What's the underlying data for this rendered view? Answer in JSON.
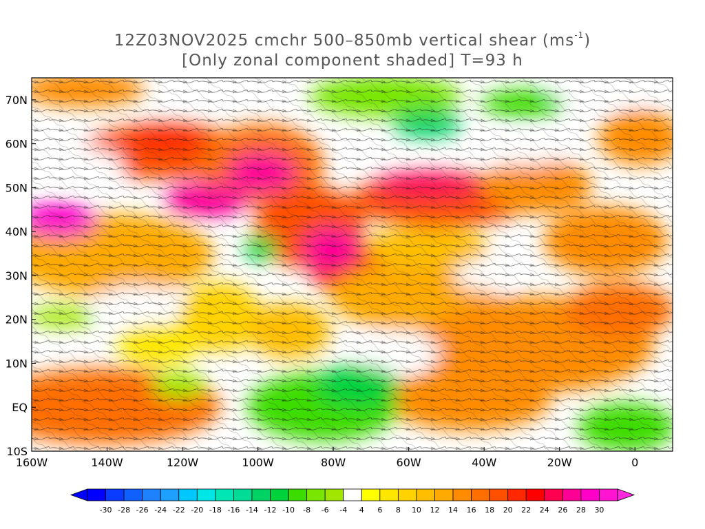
{
  "title_line1": "12Z03NOV2025 cmchr 500–850mb vertical shear (ms",
  "title_line1_unit_sup": "-1",
  "title_line1_close": ")",
  "title_line2": "[Only zonal component shaded] T=93 h",
  "map": {
    "lon_range": [
      -160,
      10
    ],
    "lat_range": [
      -10,
      75
    ],
    "lat_ticks": [
      {
        "value": 70,
        "label": "70N"
      },
      {
        "value": 60,
        "label": "60N"
      },
      {
        "value": 50,
        "label": "50N"
      },
      {
        "value": 40,
        "label": "40N"
      },
      {
        "value": 30,
        "label": "30N"
      },
      {
        "value": 20,
        "label": "20N"
      },
      {
        "value": 10,
        "label": "10N"
      },
      {
        "value": 0,
        "label": "EQ"
      },
      {
        "value": -10,
        "label": "10S"
      }
    ],
    "lon_ticks": [
      {
        "value": -160,
        "label": "160W"
      },
      {
        "value": -140,
        "label": "140W"
      },
      {
        "value": -120,
        "label": "120W"
      },
      {
        "value": -100,
        "label": "100W"
      },
      {
        "value": -80,
        "label": "80W"
      },
      {
        "value": -60,
        "label": "60W"
      },
      {
        "value": -40,
        "label": "40W"
      },
      {
        "value": -20,
        "label": "20W"
      },
      {
        "value": 0,
        "label": "0"
      }
    ]
  },
  "colorbar": {
    "labels": [
      "-30",
      "-28",
      "-26",
      "-24",
      "-22",
      "-20",
      "-18",
      "-16",
      "-14",
      "-12",
      "-10",
      "-8",
      "-6",
      "-4",
      "4",
      "6",
      "8",
      "10",
      "12",
      "14",
      "16",
      "18",
      "20",
      "22",
      "24",
      "26",
      "28",
      "30"
    ],
    "colors": [
      "#0000ff",
      "#0a3cff",
      "#1060ff",
      "#1e82ff",
      "#1ea0ff",
      "#00c8ff",
      "#00e6e6",
      "#00e6b4",
      "#00dc96",
      "#00d264",
      "#00d23c",
      "#3cdc00",
      "#78e600",
      "#a0e600",
      "#ffffff",
      "#ffff00",
      "#ffe600",
      "#ffd200",
      "#ffbe00",
      "#ffaa00",
      "#ff8c00",
      "#ff6e00",
      "#ff5000",
      "#ff2800",
      "#ff0000",
      "#ff0050",
      "#ff0096",
      "#ff00c8",
      "#ff14d2"
    ],
    "under_color": "#0000ff",
    "over_color": "#ff28dc"
  }
}
